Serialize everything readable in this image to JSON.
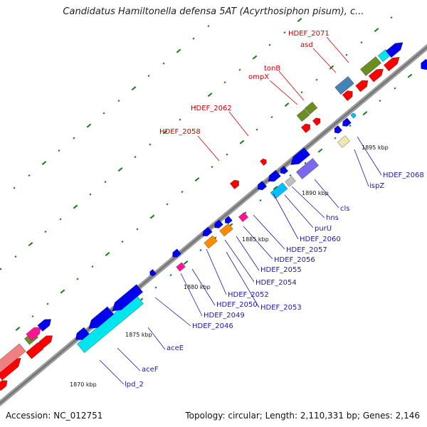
{
  "title": "Candidatus Hamiltonella defensa 5AT (Acyrthosiphon pisum), c...",
  "footer": {
    "accession_text": "Accession: NC_012751",
    "topology_text": "Topology: circular; Length: 2,110,331 bp; Genes: 2,146"
  },
  "scale_ticks": [
    "1870 kbp",
    "1875 kbp",
    "1880 kbp",
    "1885 kbp",
    "1890 kbp",
    "1895 kbp"
  ],
  "forward_labels": [
    "HDEF_2058",
    "HDEF_2062",
    "ompX",
    "tonB",
    "asd",
    "HDEF_2071"
  ],
  "reverse_labels": [
    "lpd_2",
    "aceF",
    "aceE",
    "HDEF_2046",
    "HDEF_2049",
    "HDEF_2050",
    "HDEF_2052",
    "HDEF_2053",
    "HDEF_2054",
    "HDEF_2055",
    "HDEF_2056",
    "HDEF_2057",
    "HDEF_2060",
    "purU",
    "hns",
    "cls",
    "ispZ",
    "HDEF_2068"
  ],
  "colors": {
    "label_forward": "#cc0000",
    "label_reverse": "#1a1aa6",
    "backbone": "#9a9a9a",
    "cds_forward": "#ff0000",
    "cds_reverse": "#0000ee",
    "cyan": "#00e5ee",
    "olive": "#6b8e23",
    "orange": "#ff8c00",
    "magenta": "#ff1493",
    "pink": "#f08080",
    "steelblue": "#4682b4",
    "slateblue": "#7b68ee",
    "khaki": "#eee8aa",
    "skyblue": "#00bfff",
    "grey": "#c0c0c0",
    "dots": "#1a7a1a"
  }
}
